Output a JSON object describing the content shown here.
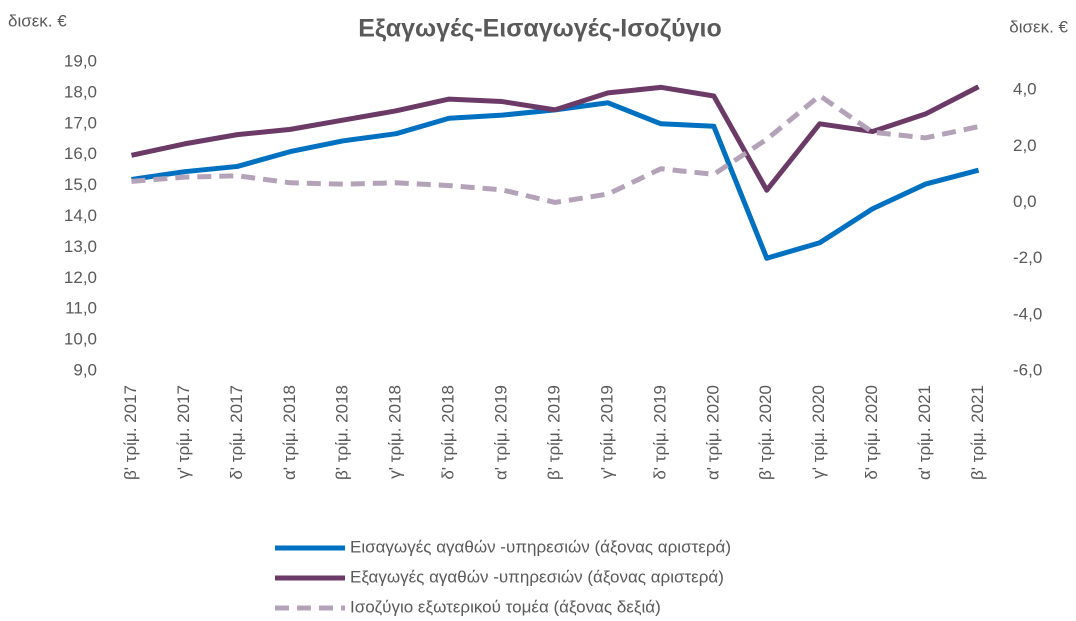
{
  "chart_data": {
    "type": "line",
    "title": "Εξαγωγές-Εισαγωγές-Ισοζύγιο",
    "y_label": "δισεκ. €",
    "y2_label": "δισεκ. €",
    "categories": [
      "β' τρίμ. 2017",
      "γ' τρίμ. 2017",
      "δ' τρίμ. 2017",
      "α' τρίμ. 2018",
      "β' τρίμ. 2018",
      "γ' τρίμ. 2018",
      "δ' τρίμ. 2018",
      "α' τρίμ. 2019",
      "β' τρίμ. 2019",
      "γ' τρίμ. 2019",
      "δ' τρίμ. 2019",
      "α' τρίμ. 2020",
      "β' τρίμ. 2020",
      "γ' τρίμ. 2020",
      "δ' τρίμ. 2020",
      "α' τρίμ. 2021",
      "β' τρίμ. 2021"
    ],
    "series": [
      {
        "name": "Εισαγωγές αγαθών -υπηρεσιών (άξονας αριστερά)",
        "color": "#0070c0",
        "axis": "y",
        "values": [
          15.2,
          15.45,
          15.62,
          16.1,
          16.45,
          16.68,
          17.18,
          17.28,
          17.45,
          17.68,
          17.0,
          16.92,
          12.65,
          13.15,
          14.25,
          15.05,
          15.5
        ]
      },
      {
        "name": "Εξαγωγές αγαθών -υπηρεσιών (άξονας αριστερά)",
        "color": "#6b3a67",
        "axis": "y",
        "values": [
          15.98,
          16.35,
          16.65,
          16.82,
          17.12,
          17.42,
          17.8,
          17.72,
          17.45,
          18.0,
          18.18,
          17.9,
          14.85,
          17.0,
          16.75,
          17.32,
          18.2
        ]
      },
      {
        "name": "Ισοζύγιο εξωτερικού τομέα (άξονας δεξιά)",
        "color": "#b4a3b8",
        "axis": "y2",
        "dashed": true,
        "values": [
          0.75,
          0.9,
          0.95,
          0.7,
          0.65,
          0.7,
          0.6,
          0.45,
          0.0,
          0.3,
          1.2,
          1.0,
          2.25,
          3.8,
          2.5,
          2.3,
          2.7
        ]
      }
    ],
    "ylim": [
      9,
      19
    ],
    "yticks": [
      {
        "value": 9,
        "label": "9,0"
      },
      {
        "value": 10,
        "label": "10,0"
      },
      {
        "value": 11,
        "label": "11,0"
      },
      {
        "value": 12,
        "label": "12,0"
      },
      {
        "value": 13,
        "label": "13,0"
      },
      {
        "value": 14,
        "label": "14,0"
      },
      {
        "value": 15,
        "label": "15,0"
      },
      {
        "value": 16,
        "label": "16,0"
      },
      {
        "value": 17,
        "label": "17,0"
      },
      {
        "value": 18,
        "label": "18,0"
      },
      {
        "value": 19,
        "label": "19,0"
      }
    ],
    "y2lim": [
      -6,
      5
    ],
    "y2ticks": [
      {
        "value": -6,
        "label": "-6,0"
      },
      {
        "value": -4,
        "label": "-4,0"
      },
      {
        "value": -2,
        "label": "-2,0"
      },
      {
        "value": 0,
        "label": "0,0"
      },
      {
        "value": 2,
        "label": "2,0"
      },
      {
        "value": 4,
        "label": "4,0"
      }
    ]
  }
}
